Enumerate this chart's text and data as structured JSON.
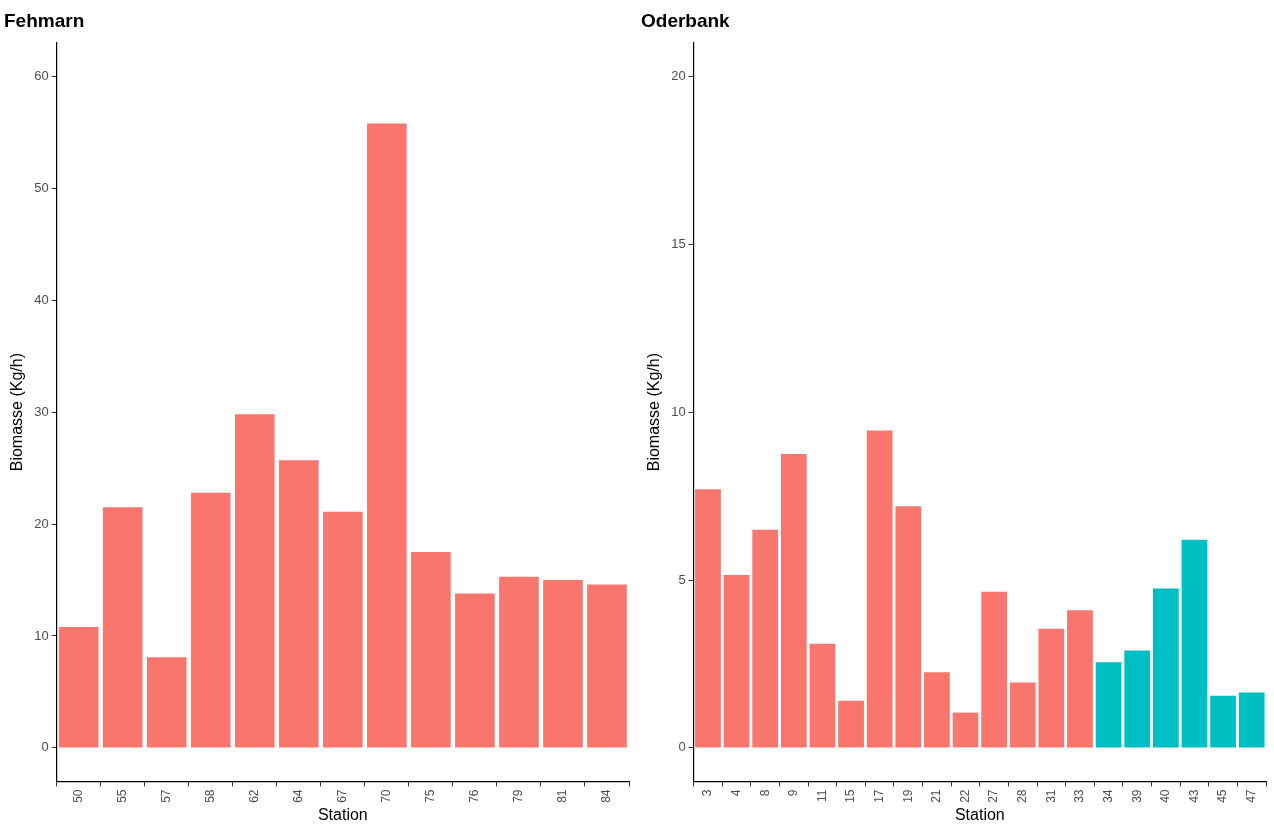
{
  "chart_data": [
    {
      "type": "bar",
      "title": "Fehmarn",
      "xlabel": "Station",
      "ylabel": "Biomasse (Kg/h)",
      "categories": [
        "50",
        "55",
        "57",
        "58",
        "62",
        "64",
        "67",
        "70",
        "75",
        "76",
        "79",
        "81",
        "84"
      ],
      "values": [
        10.8,
        21.5,
        8.1,
        22.8,
        29.8,
        25.7,
        21.1,
        55.8,
        17.5,
        13.8,
        15.3,
        15.0,
        14.6
      ],
      "colors": [
        "#f8766d",
        "#f8766d",
        "#f8766d",
        "#f8766d",
        "#f8766d",
        "#f8766d",
        "#f8766d",
        "#f8766d",
        "#f8766d",
        "#f8766d",
        "#f8766d",
        "#f8766d",
        "#f8766d"
      ],
      "ylim": [
        -3,
        63
      ],
      "yticks": [
        0,
        10,
        20,
        30,
        40,
        50,
        60
      ]
    },
    {
      "type": "bar",
      "title": "Oderbank",
      "xlabel": "Station",
      "ylabel": "Biomasse (Kg/h)",
      "categories": [
        "3",
        "4",
        "8",
        "9",
        "11",
        "15",
        "17",
        "19",
        "21",
        "22",
        "27",
        "28",
        "31",
        "33",
        "34",
        "39",
        "40",
        "43",
        "45",
        "47"
      ],
      "values": [
        7.7,
        5.15,
        6.5,
        8.75,
        3.1,
        1.4,
        9.45,
        7.2,
        2.25,
        1.05,
        4.65,
        1.95,
        3.55,
        4.1,
        2.55,
        2.9,
        4.75,
        6.2,
        1.55,
        1.65
      ],
      "colors": [
        "#f8766d",
        "#f8766d",
        "#f8766d",
        "#f8766d",
        "#f8766d",
        "#f8766d",
        "#f8766d",
        "#f8766d",
        "#f8766d",
        "#f8766d",
        "#f8766d",
        "#f8766d",
        "#f8766d",
        "#f8766d",
        "#00bfc4",
        "#00bfc4",
        "#00bfc4",
        "#00bfc4",
        "#00bfc4",
        "#00bfc4"
      ],
      "ylim": [
        -1,
        21
      ],
      "yticks": [
        0,
        5,
        10,
        15,
        20
      ]
    }
  ]
}
